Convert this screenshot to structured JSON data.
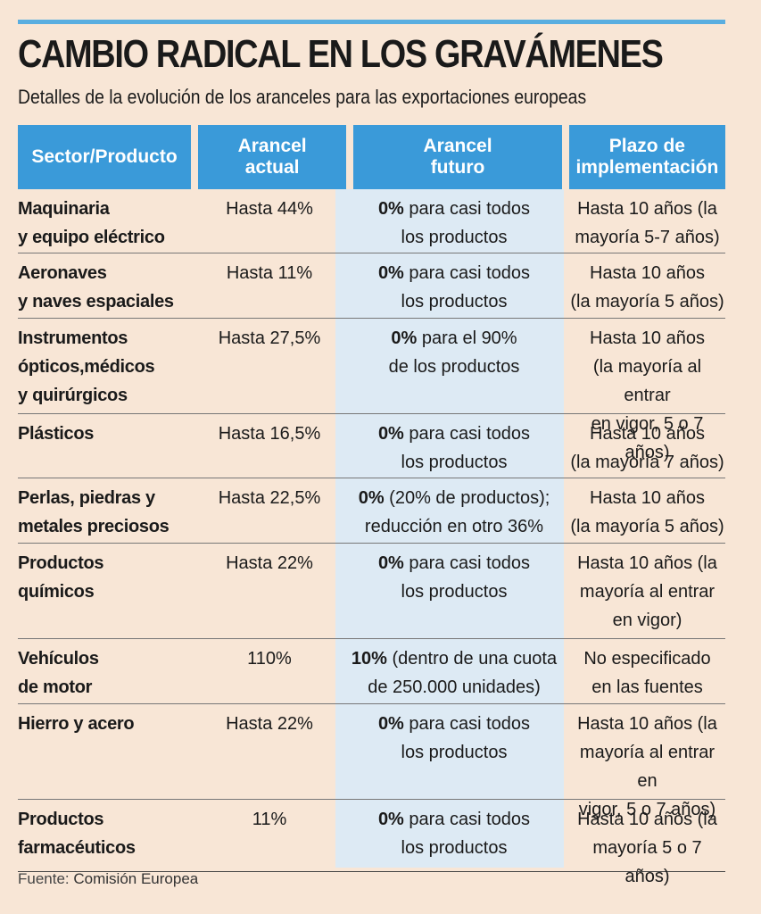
{
  "title": "CAMBIO RADICAL EN LOS GRAVÁMENES",
  "subtitle": "Detalles de la evolución de los aranceles para las exportaciones europeas",
  "colors": {
    "accent": "#3a9ad9",
    "background": "#f8e6d6",
    "band": "#ddeaf4"
  },
  "headers": {
    "sector": "Sector/Producto",
    "actual": "Arancel\nactual",
    "future": "Arancel\nfuturo",
    "plazo": "Plazo de\nimplementación"
  },
  "rows": [
    {
      "sector": "Maquinaria\ny equipo eléctrico",
      "actual": "Hasta 44%",
      "future_bold": "0%",
      "future_rest": " para casi todos\nlos productos",
      "plazo": "Hasta 10 años (la\nmayoría 5-7 años)"
    },
    {
      "sector": "Aeronaves\ny naves espaciales",
      "actual": "Hasta 11%",
      "future_bold": "0%",
      "future_rest": " para casi todos\nlos productos",
      "plazo": "Hasta 10 años\n(la mayoría 5 años)"
    },
    {
      "sector": "Instrumentos\nópticos,médicos\ny quirúrgicos",
      "actual": "Hasta 27,5%",
      "future_bold": "0%",
      "future_rest": " para el 90%\nde los productos",
      "plazo": "Hasta 10 años\n(la mayoría al entrar\nen vigor, 5 o 7 años)"
    },
    {
      "sector": "Plásticos",
      "actual": "Hasta 16,5%",
      "future_bold": "0%",
      "future_rest": " para casi todos\nlos productos",
      "plazo": "Hasta 10 años\n(la mayoría 7 años)"
    },
    {
      "sector": "Perlas, piedras y\nmetales preciosos",
      "actual": "Hasta 22,5%",
      "future_bold": "0%",
      "future_rest": " (20% de productos);\nreducción en otro 36%",
      "plazo": "Hasta 10 años\n(la mayoría 5 años)"
    },
    {
      "sector": "Productos\nquímicos",
      "actual": "Hasta 22%",
      "future_bold": "0%",
      "future_rest": " para casi todos\nlos productos",
      "plazo": "Hasta 10 años (la\nmayoría al entrar\nen vigor)"
    },
    {
      "sector": "Vehículos\nde motor",
      "actual": "110%",
      "future_bold": "10%",
      "future_rest": " (dentro de una cuota\nde 250.000 unidades)",
      "plazo": "No especificado\nen las fuentes"
    },
    {
      "sector": "Hierro y acero",
      "actual": "Hasta 22%",
      "future_bold": "0%",
      "future_rest": " para casi todos\nlos productos",
      "plazo": "Hasta 10 años (la\nmayoría al entrar en\nvigor, 5 o 7 años)"
    },
    {
      "sector": "Productos\nfarmacéuticos",
      "actual": "11%",
      "future_bold": "0%",
      "future_rest": " para casi todos\nlos productos",
      "plazo": "Hasta 10 años (la\nmayoría 5 o 7 años)"
    }
  ],
  "source": {
    "label": "Fuente:",
    "value": "Comisión Europea"
  }
}
